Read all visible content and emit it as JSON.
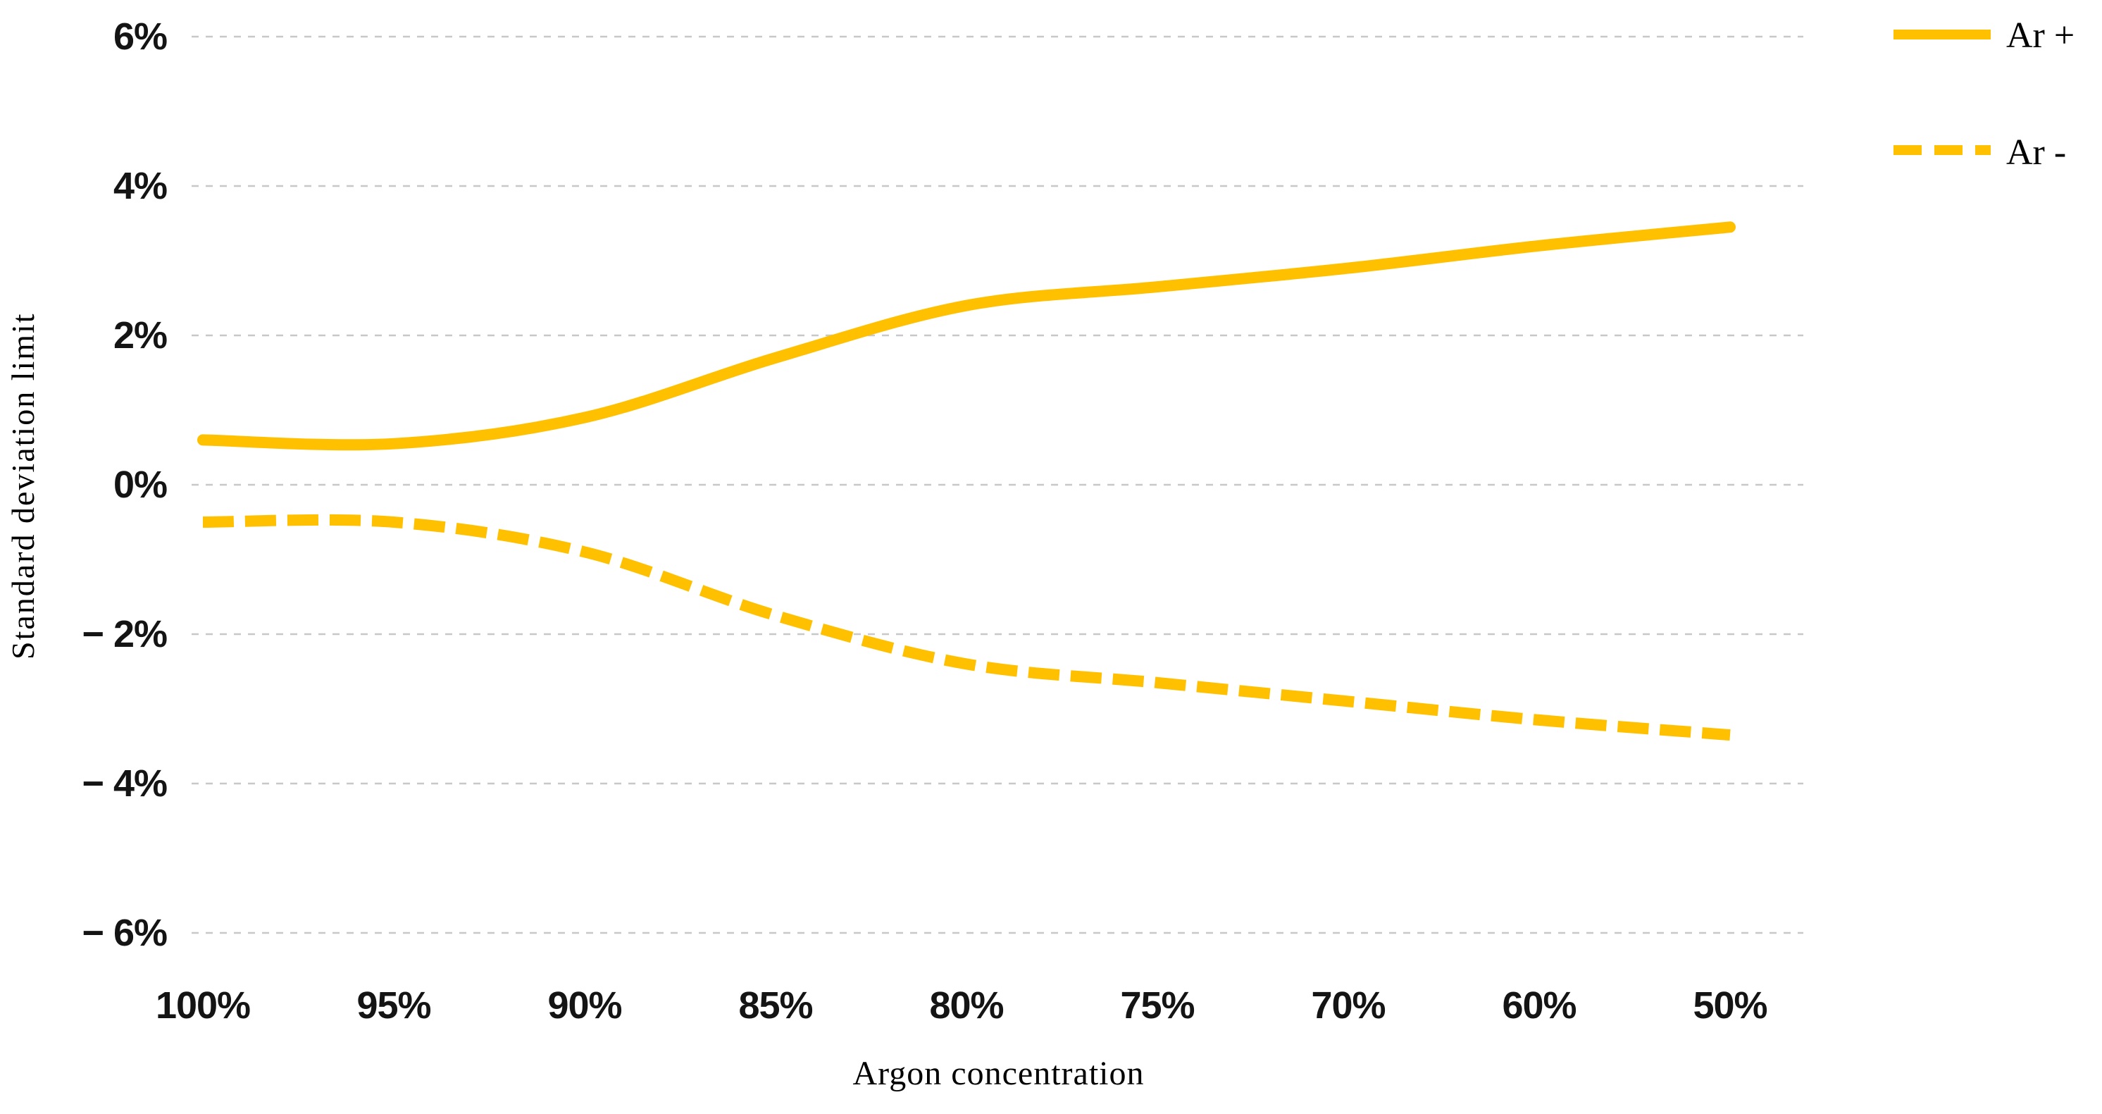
{
  "chart_data": {
    "type": "line",
    "title": "",
    "xlabel": "Argon concentration",
    "ylabel": "Standard deviation limit",
    "categories": [
      "100%",
      "95%",
      "90%",
      "85%",
      "80%",
      "75%",
      "70%",
      "60%",
      "50%"
    ],
    "series": [
      {
        "name": "Ar +",
        "style": "solid",
        "values": [
          0.6,
          0.55,
          0.9,
          1.7,
          2.4,
          2.65,
          2.9,
          3.2,
          3.45
        ]
      },
      {
        "name": "Ar -",
        "style": "dashed",
        "values": [
          -0.5,
          -0.5,
          -0.9,
          -1.75,
          -2.4,
          -2.65,
          -2.9,
          -3.15,
          -3.35
        ]
      }
    ],
    "ylim": [
      -6,
      6
    ],
    "y_tick_labels": [
      "6%",
      "4%",
      "2%",
      "0%",
      "− 2%",
      "− 4%",
      "− 6%"
    ],
    "y_tick_values": [
      6,
      4,
      2,
      0,
      -2,
      -4,
      -6
    ],
    "grid": "horizontal dashed gridlines only",
    "legend_position": "top-right",
    "colors": {
      "line": "#FFC000",
      "gridline": "#C8C8C8",
      "tick_text": "#141414",
      "title_text": "#000000",
      "background": "#FFFFFF"
    }
  }
}
